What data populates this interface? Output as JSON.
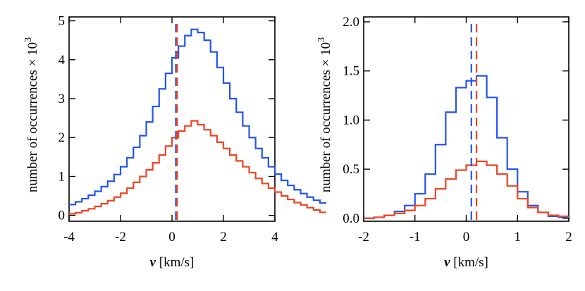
{
  "colors": {
    "series_1": "#2255ee",
    "series_2": "#ee4422",
    "axes": "#000000"
  },
  "chart_data": [
    {
      "type": "line",
      "subtype": "step-histogram",
      "title": "",
      "xlabel_var": "v",
      "xlabel_unit": " [km/s]",
      "ylabel_main": "number of occurrences × 10",
      "ylabel_exp": "3",
      "xlim": [
        -4,
        4
      ],
      "ylim": [
        -0.15,
        5.1
      ],
      "xticks": [
        -4,
        -2,
        0,
        2,
        4
      ],
      "xtick_labels": [
        "-4",
        "-2",
        "0",
        "2",
        "4"
      ],
      "yticks": [
        0,
        1,
        2,
        3,
        4,
        5
      ],
      "ytick_labels": [
        "0",
        "1",
        "2",
        "3",
        "4",
        "5"
      ],
      "bin_start": -4,
      "bin_width": 0.25,
      "series": [
        {
          "name": "series 1 (blue)",
          "color": "#2255ee",
          "mean": 0.15,
          "values": [
            0.28,
            0.35,
            0.43,
            0.52,
            0.62,
            0.74,
            0.88,
            1.05,
            1.25,
            1.48,
            1.75,
            2.05,
            2.4,
            2.8,
            3.25,
            3.65,
            4.05,
            4.35,
            4.62,
            4.78,
            4.7,
            4.5,
            4.2,
            3.8,
            3.4,
            3.0,
            2.65,
            2.3,
            2.0,
            1.72,
            1.48,
            1.25,
            1.06,
            0.9,
            0.77,
            0.66,
            0.56,
            0.47,
            0.39,
            0.32
          ]
        },
        {
          "name": "series 2 (red)",
          "color": "#ee4422",
          "mean": 0.2,
          "values": [
            0.04,
            0.07,
            0.12,
            0.17,
            0.23,
            0.3,
            0.38,
            0.47,
            0.57,
            0.7,
            0.85,
            1.0,
            1.17,
            1.35,
            1.55,
            1.78,
            2.0,
            2.17,
            2.3,
            2.43,
            2.33,
            2.2,
            2.05,
            1.88,
            1.72,
            1.55,
            1.4,
            1.25,
            1.1,
            0.95,
            0.82,
            0.7,
            0.6,
            0.5,
            0.41,
            0.33,
            0.27,
            0.2,
            0.14,
            0.08
          ]
        }
      ]
    },
    {
      "type": "line",
      "subtype": "step-histogram",
      "title": "",
      "xlabel_var": "v",
      "xlabel_unit": " [km/s]",
      "ylabel_main": "number of occurrences × 10",
      "ylabel_exp": "3",
      "xlim": [
        -2,
        2
      ],
      "ylim": [
        -0.03,
        2.05
      ],
      "xticks": [
        -2,
        -1,
        0,
        1,
        2
      ],
      "xtick_labels": [
        "-2",
        "-1",
        "0",
        "1",
        "2"
      ],
      "yticks": [
        0,
        0.5,
        1.0,
        1.5,
        2.0
      ],
      "ytick_labels": [
        "0.0",
        "0.5",
        "1.0",
        "1.5",
        "2.0"
      ],
      "bin_start": -2,
      "bin_width": 0.2,
      "series": [
        {
          "name": "series 1 (blue)",
          "color": "#2255ee",
          "mean": 0.1,
          "values": [
            0.0,
            0.01,
            0.03,
            0.07,
            0.13,
            0.25,
            0.45,
            0.75,
            1.08,
            1.33,
            1.4,
            1.45,
            1.23,
            0.82,
            0.5,
            0.27,
            0.13,
            0.06,
            0.02,
            0.01
          ]
        },
        {
          "name": "series 2 (red)",
          "color": "#ee4422",
          "mean": 0.2,
          "values": [
            0.0,
            0.01,
            0.03,
            0.05,
            0.08,
            0.13,
            0.2,
            0.3,
            0.4,
            0.49,
            0.54,
            0.58,
            0.54,
            0.45,
            0.33,
            0.2,
            0.11,
            0.06,
            0.03,
            0.02
          ]
        }
      ]
    }
  ]
}
